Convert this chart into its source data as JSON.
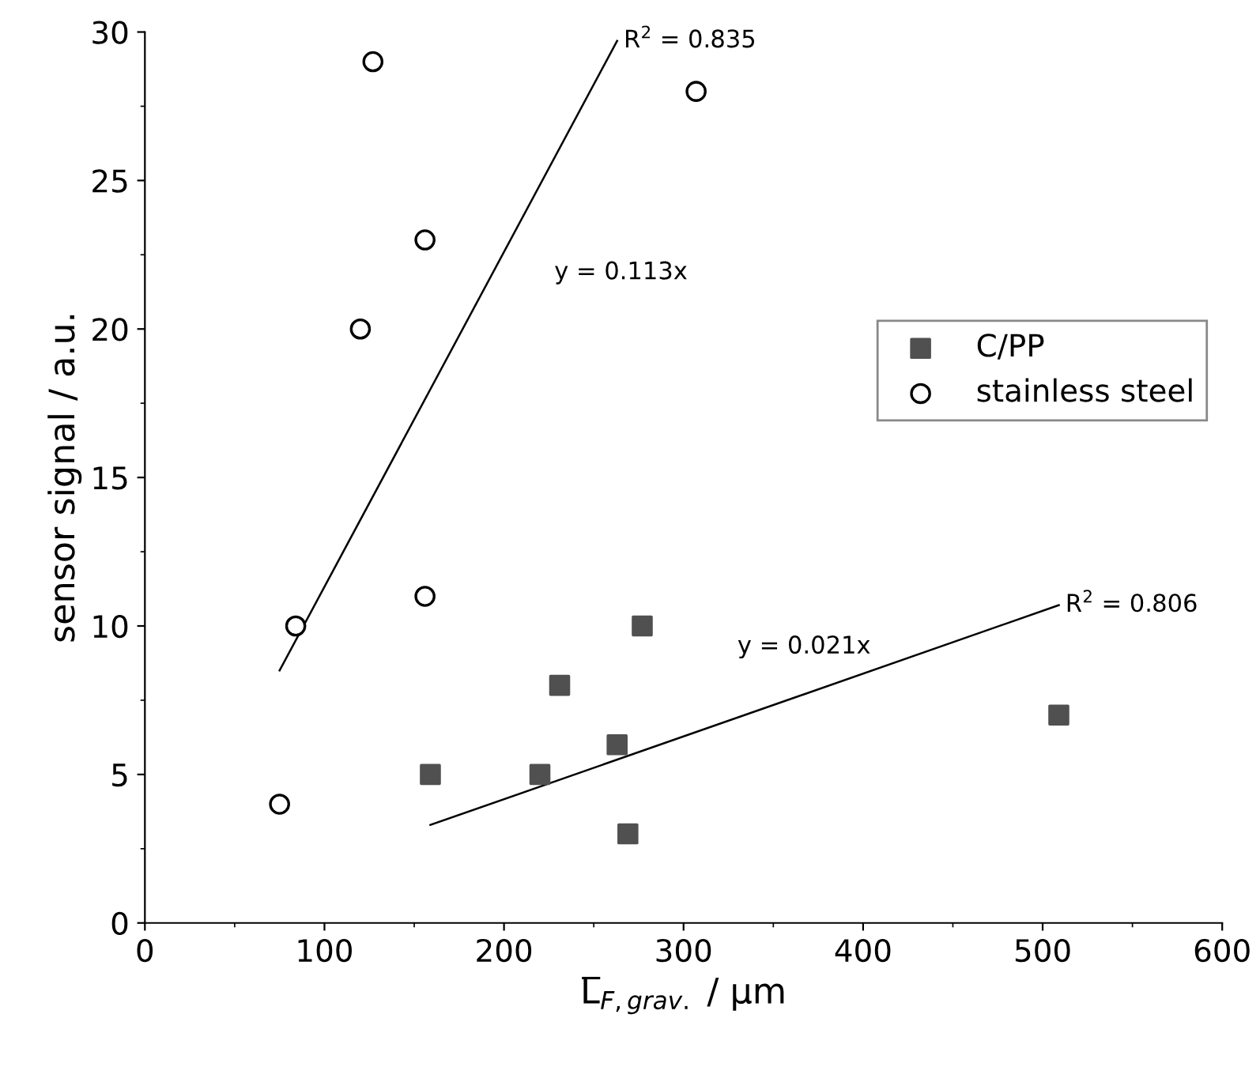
{
  "chart_data": {
    "type": "scatter",
    "xlabel": "L̅$_{F,grav.}$ / µm",
    "ylabel": "sensor signal / a.u.",
    "series": [
      {
        "name": "C/PP",
        "marker": "square",
        "color": "#505050",
        "x": [
          159,
          220,
          231,
          263,
          269,
          277,
          509
        ],
        "values": [
          5,
          5,
          8,
          6,
          3,
          10,
          7
        ]
      },
      {
        "name": "stainless steel",
        "marker": "circle",
        "color": "#000000",
        "x": [
          75,
          84,
          120,
          127,
          156,
          156,
          307
        ],
        "values": [
          4,
          10,
          20,
          29,
          23,
          11,
          28
        ]
      },
      {
        "type": "line",
        "color": "#000000",
        "x": [
          159,
          509
        ],
        "values": [
          3.3,
          10.7
        ]
      },
      {
        "type": "line",
        "color": "#000000",
        "x": [
          75,
          263
        ],
        "values": [
          8.5,
          29.7
        ]
      }
    ],
    "annotations": [
      "y = 0.113x",
      {
        "text": "R$^{2}$ = 0.835",
        "x": 263,
        "y": 29.7
      },
      "y = 0.021x",
      {
        "text": "R$^{2}$ = 0.806",
        "x": 509,
        "y": 10.7
      }
    ],
    "xlim": [
      0,
      600
    ],
    "ylim": [
      0,
      30
    ],
    "xticks": [
      0,
      100,
      200,
      300,
      400,
      500,
      600
    ],
    "yticks": [
      0,
      5,
      10,
      15,
      20,
      25,
      30
    ],
    "grid": false,
    "legend": "right"
  }
}
